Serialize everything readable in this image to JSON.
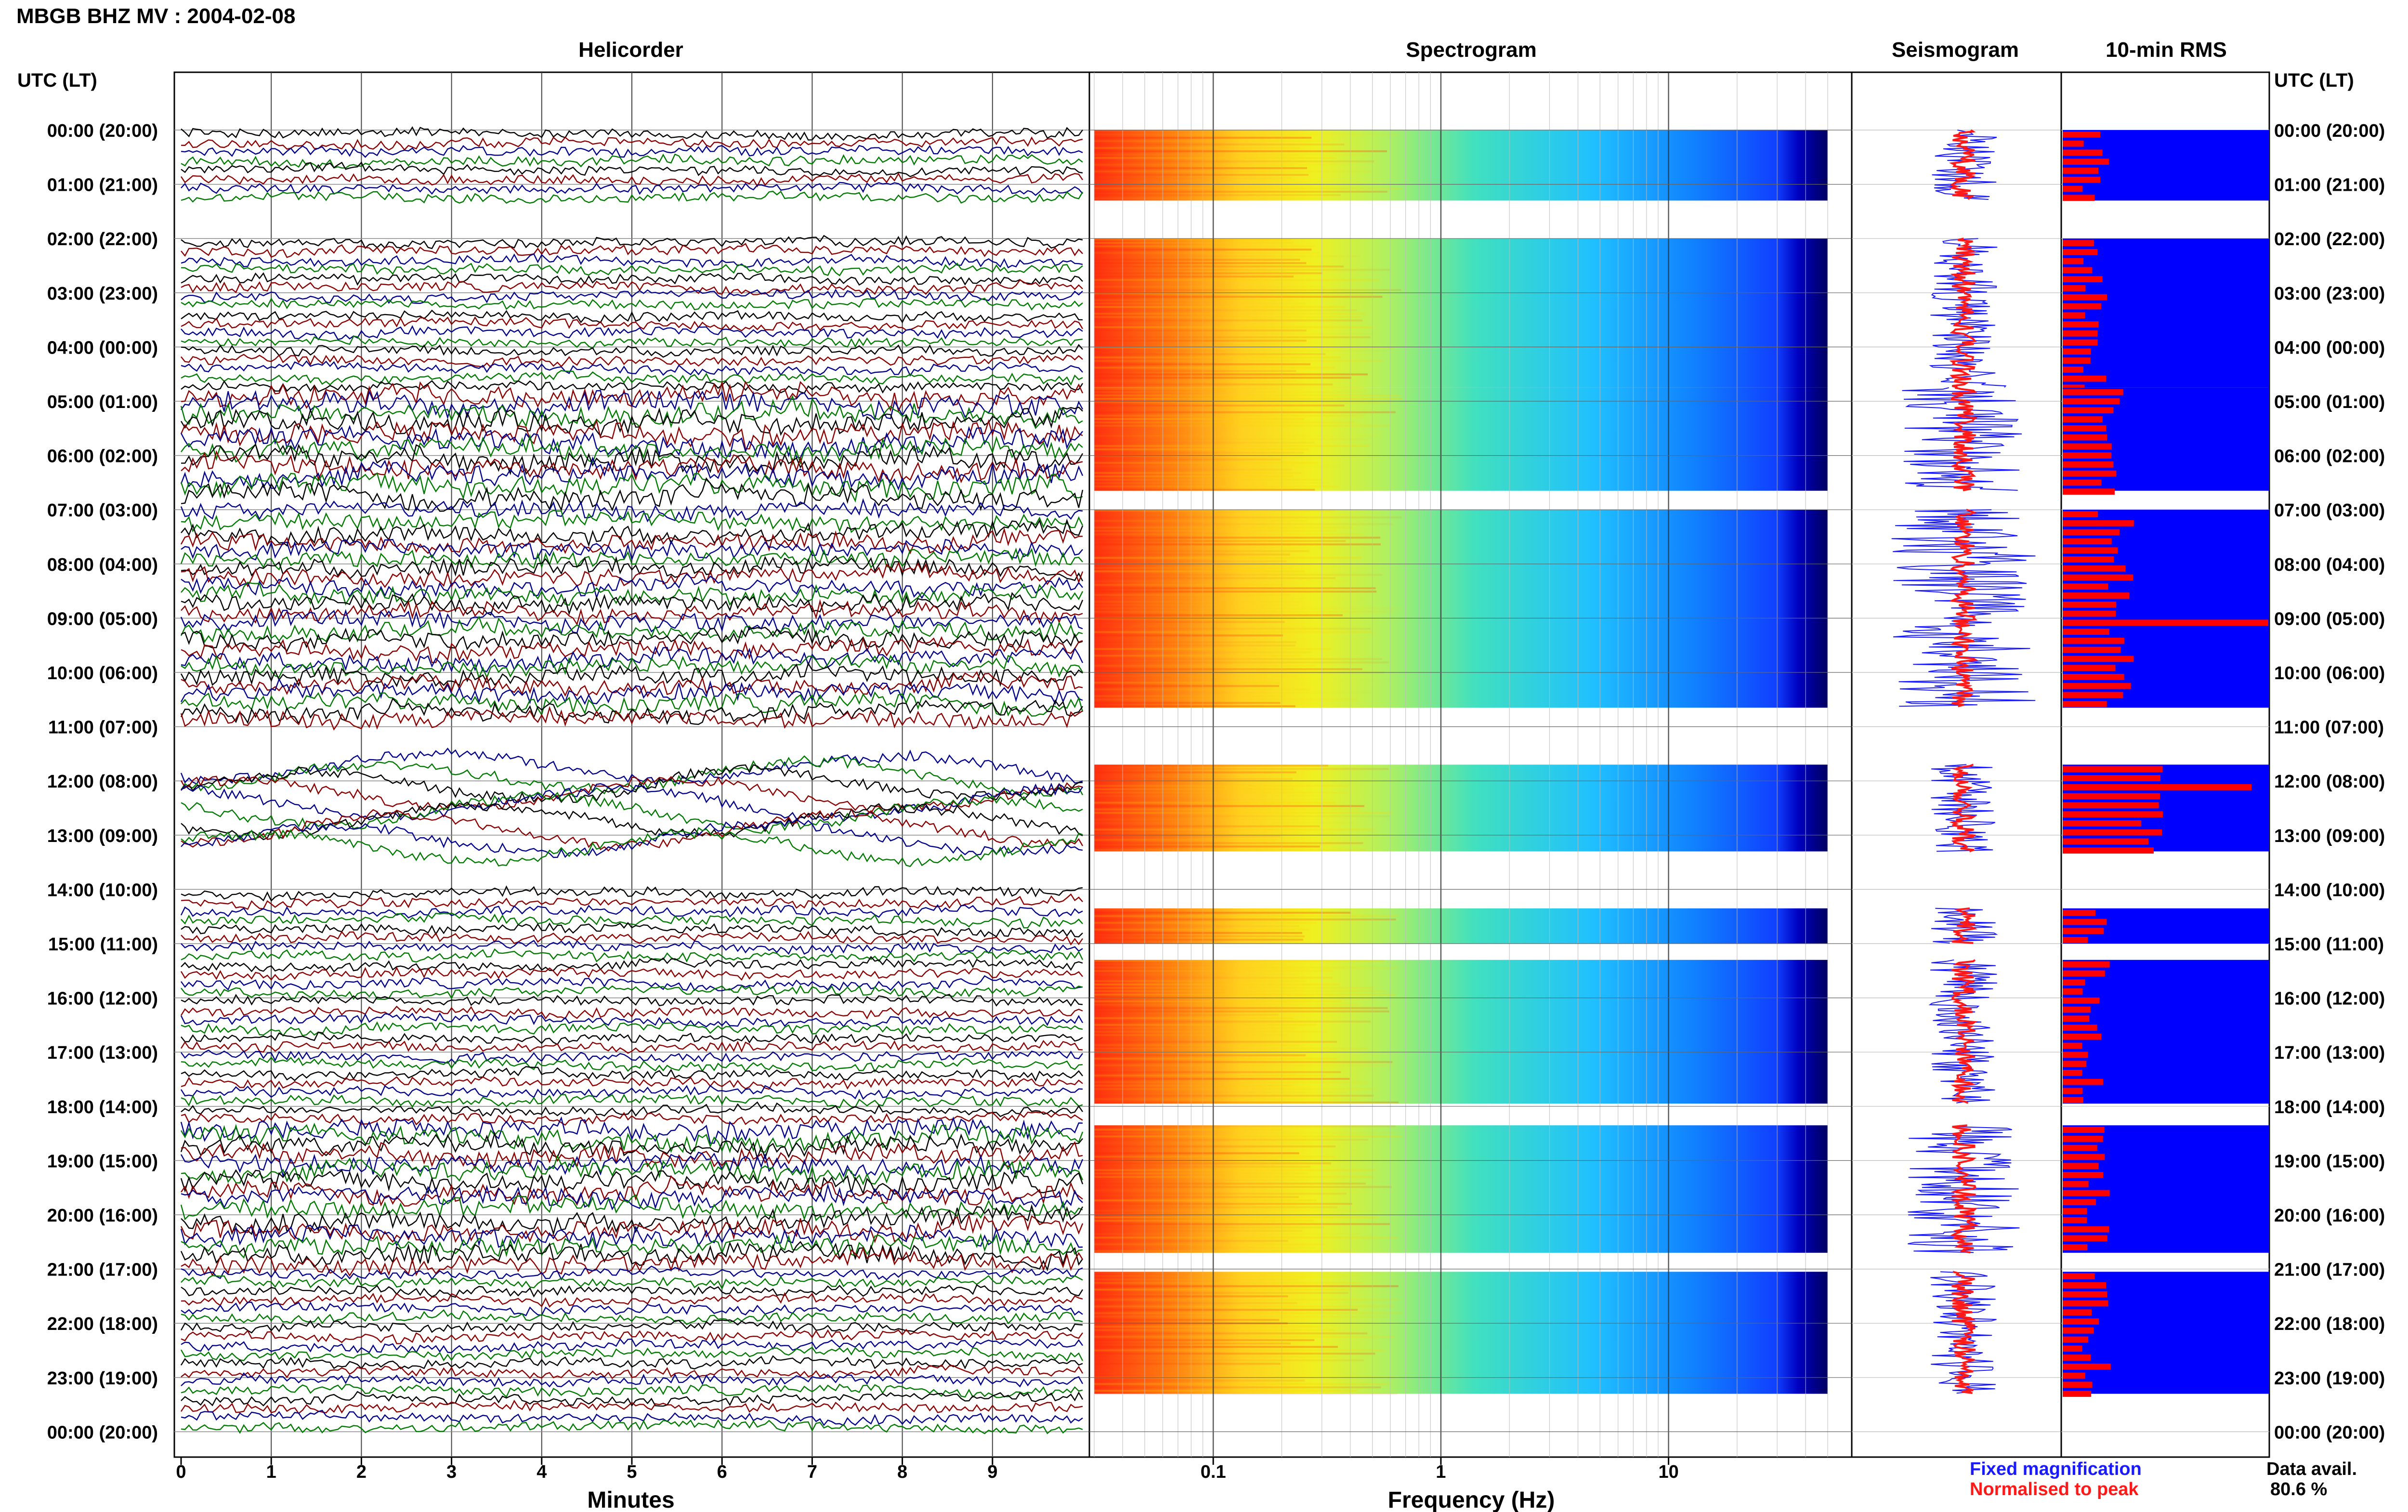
{
  "header": {
    "title": "MBGB BHZ MV : 2004-02-08"
  },
  "columns": {
    "helicorder": "Helicorder",
    "spectrogram": "Spectrogram",
    "seismogram": "Seismogram",
    "rms": "10-min RMS"
  },
  "axis": {
    "time_header_left": "UTC (LT)",
    "time_header_right": "UTC (LT)",
    "minutes_label": "Minutes",
    "frequency_label": "Frequency (Hz)"
  },
  "legend": {
    "fixed": "Fixed magnification",
    "normalised": "Normalised to peak",
    "fixed_color": "#1a1aff",
    "normalised_color": "#ff1a1a"
  },
  "data_availability": {
    "label": "Data avail.",
    "value": "80.6 %"
  },
  "colors": {
    "trace_colors": [
      "#000000",
      "#8b0000",
      "#00008b",
      "#007a00"
    ],
    "rms_fill": "#0000ff",
    "rms_bar": "#ff0000"
  },
  "chart_data": [
    {
      "type": "line",
      "title": "Helicorder",
      "xlabel": "Minutes",
      "ylabel": "UTC (LT)",
      "x_ticks": [
        "0",
        "1",
        "2",
        "3",
        "4",
        "5",
        "6",
        "7",
        "8",
        "9"
      ],
      "xlim": [
        0,
        10
      ],
      "time_labels": [
        "00:00 (20:00)",
        "01:00 (21:00)",
        "02:00 (22:00)",
        "03:00 (23:00)",
        "04:00 (00:00)",
        "05:00 (01:00)",
        "06:00 (02:00)",
        "07:00 (03:00)",
        "08:00 (04:00)",
        "09:00 (05:00)",
        "10:00 (06:00)",
        "11:00 (07:00)",
        "12:00 (08:00)",
        "13:00 (09:00)",
        "14:00 (10:00)",
        "15:00 (11:00)",
        "16:00 (12:00)",
        "17:00 (13:00)",
        "18:00 (14:00)",
        "19:00 (15:00)",
        "20:00 (16:00)",
        "21:00 (17:00)",
        "22:00 (18:00)",
        "23:00 (19:00)",
        "00:00 (20:00)"
      ],
      "data_segments_hours": [
        [
          0,
          1.3
        ],
        [
          1.95,
          6.7
        ],
        [
          7.0,
          11.0
        ],
        [
          11.6,
          13.2
        ],
        [
          14.0,
          24.0
        ]
      ],
      "grid": true
    },
    {
      "type": "heatmap",
      "title": "Spectrogram",
      "xlabel": "Frequency (Hz)",
      "x_scale": "log",
      "x_ticks": [
        "0.1",
        "1",
        "10"
      ],
      "xlim": [
        0.03,
        50
      ],
      "colormap": "jet",
      "data_segments_hours": [
        [
          0,
          1.3
        ],
        [
          2.0,
          4.75
        ],
        [
          4.75,
          6.65
        ],
        [
          7.0,
          10.65
        ],
        [
          11.7,
          13.3
        ],
        [
          14.35,
          15.0
        ],
        [
          15.3,
          17.95
        ],
        [
          18.35,
          20.7
        ],
        [
          21.05,
          23.3
        ]
      ]
    },
    {
      "type": "line",
      "title": "Seismogram",
      "series": [
        {
          "name": "Fixed magnification",
          "color": "#1a1aff"
        },
        {
          "name": "Normalised to peak",
          "color": "#ff1a1a"
        }
      ]
    },
    {
      "type": "bar",
      "title": "10-min RMS",
      "orientation": "horizontal",
      "data_segments_hours": [
        [
          0,
          1.3
        ],
        [
          2.0,
          4.75
        ],
        [
          4.75,
          6.65
        ],
        [
          7.0,
          10.65
        ],
        [
          11.7,
          13.3
        ],
        [
          14.35,
          15.0
        ],
        [
          15.3,
          17.95
        ],
        [
          18.35,
          20.7
        ],
        [
          21.05,
          23.3
        ]
      ],
      "peak_hours": [
        9.0,
        12.0
      ]
    }
  ]
}
